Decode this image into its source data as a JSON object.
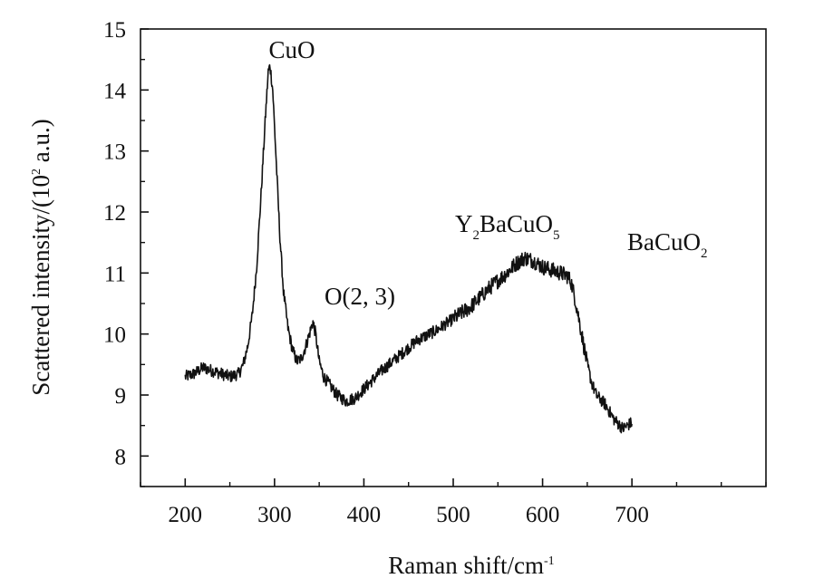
{
  "chart_data": {
    "type": "line",
    "xlabel": "Raman shift/cm-1",
    "xlabel_main": "Raman shift/cm",
    "xlabel_sup": "-1",
    "ylabel": "Scattered intensity/(10^2 a.u.)",
    "ylabel_pre": "Scattered intensity/(10",
    "ylabel_sup": "2",
    "ylabel_post": " a.u.)",
    "xlim": [
      150,
      850
    ],
    "ylim": [
      7.5,
      15
    ],
    "xticks": [
      200,
      300,
      400,
      500,
      600,
      700
    ],
    "yticks": [
      8,
      9,
      10,
      11,
      12,
      13,
      14,
      15
    ],
    "grid": false,
    "series": [
      {
        "x": [
          200,
          210,
          220,
          230,
          240,
          250,
          260,
          265,
          270,
          275,
          280,
          285,
          290,
          293,
          295,
          298,
          302,
          306,
          310,
          315,
          320,
          325,
          330,
          335,
          340,
          343,
          346,
          350,
          355,
          360,
          370,
          380,
          390,
          400,
          420,
          440,
          460,
          480,
          500,
          520,
          540,
          560,
          570,
          580,
          590,
          600,
          610,
          620,
          628,
          632,
          636,
          640,
          645,
          650,
          655,
          660,
          670,
          680,
          690,
          700
        ],
        "y": [
          9.3,
          9.35,
          9.45,
          9.4,
          9.35,
          9.3,
          9.35,
          9.5,
          9.8,
          10.3,
          11.1,
          12.3,
          13.6,
          14.3,
          14.4,
          14.0,
          12.8,
          11.6,
          10.7,
          10.1,
          9.75,
          9.55,
          9.6,
          9.8,
          10.05,
          10.2,
          10.0,
          9.55,
          9.3,
          9.2,
          9.0,
          8.9,
          8.95,
          9.1,
          9.4,
          9.65,
          9.9,
          10.05,
          10.25,
          10.45,
          10.75,
          11.0,
          11.15,
          11.25,
          11.2,
          11.1,
          11.05,
          11.0,
          10.95,
          10.85,
          10.6,
          10.3,
          9.9,
          9.5,
          9.2,
          9.0,
          8.85,
          8.6,
          8.45,
          8.55
        ]
      }
    ],
    "annotations": [
      {
        "label": "CuO",
        "x": 294,
        "y": 14.5
      },
      {
        "label": "O(2, 3)",
        "x": 345,
        "y": 10.3
      },
      {
        "label": "Y2BaCuO5",
        "x": 580,
        "y": 11.4
      },
      {
        "label": "BaCuO2",
        "x": 660,
        "y": 11.2
      }
    ]
  },
  "text": {
    "annot_cuo": "CuO",
    "annot_o23": "O(2, 3)",
    "annot_y_y": "Y",
    "annot_y_2": "2",
    "annot_y_bacuo": "BaCuO",
    "annot_y_5": "5",
    "annot_ba_bacuo": "BaCuO",
    "annot_ba_2": "2"
  }
}
